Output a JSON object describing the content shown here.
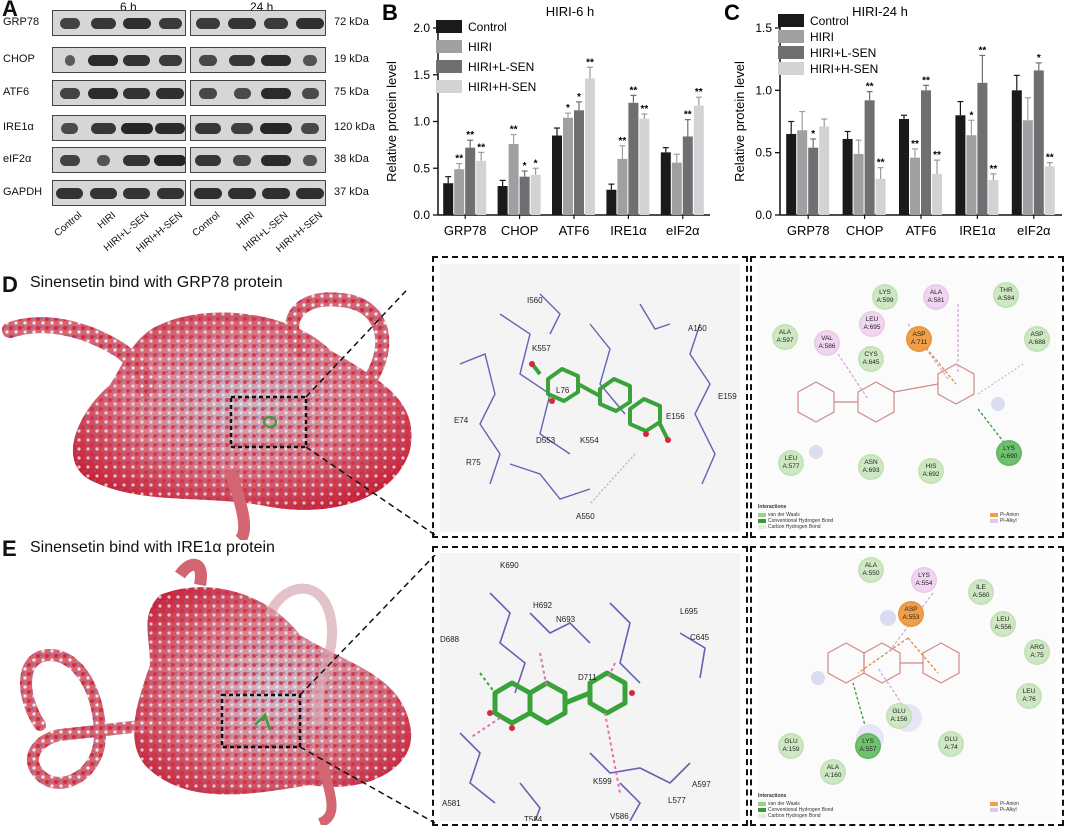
{
  "panelA": {
    "letter": "A",
    "time1": "6 h",
    "time2": "24 h",
    "proteins": [
      {
        "name": "GRP78",
        "kda": "72 kDa"
      },
      {
        "name": "CHOP",
        "kda": "19 kDa"
      },
      {
        "name": "ATF6",
        "kda": "75 kDa"
      },
      {
        "name": "IRE1α",
        "kda": "120 kDa"
      },
      {
        "name": "eIF2α",
        "kda": "38 kDa"
      },
      {
        "name": "GAPDH",
        "kda": "37 kDa"
      }
    ],
    "groups": [
      "Control",
      "HIRI",
      "HIRI+L-SEN",
      "HIRI+H-SEN"
    ]
  },
  "panelD": {
    "letter": "D",
    "title": "Sinensetin bind with GRP78 protein"
  },
  "panelE": {
    "letter": "E",
    "title": "Sinensetin bind with IRE1α protein"
  },
  "dockD": {
    "residues": [
      "I560",
      "A160",
      "K557",
      "L76",
      "E74",
      "E156",
      "E159",
      "D553",
      "K554",
      "R75",
      "A550"
    ],
    "nodes": [
      {
        "res": "LYS\nA:599",
        "kind": "vdw"
      },
      {
        "res": "ALA\nA:581",
        "kind": "alkyl"
      },
      {
        "res": "THR\nA:584",
        "kind": "vdw"
      },
      {
        "res": "LEU\nA:695",
        "kind": "alkyl"
      },
      {
        "res": "ALA\nA:597",
        "kind": "vdw"
      },
      {
        "res": "VAL\nA:586",
        "kind": "alkyl"
      },
      {
        "res": "ASP\nA:711",
        "kind": "anion"
      },
      {
        "res": "CYS\nA:645",
        "kind": "vdw"
      },
      {
        "res": "ASP\nA:688",
        "kind": "vdw"
      },
      {
        "res": "LEU\nA:577",
        "kind": "vdw"
      },
      {
        "res": "ASN\nA:693",
        "kind": "vdw"
      },
      {
        "res": "HIS\nA:692",
        "kind": "vdw"
      },
      {
        "res": "LYS\nA:690",
        "kind": "hbond"
      }
    ],
    "legend": {
      "title": "Interactions",
      "items": [
        "van der Waals",
        "Conventional Hydrogen Bond",
        "Carbon Hydrogen Bond",
        "Pi-Anion",
        "Pi-Alkyl"
      ]
    }
  },
  "dockE": {
    "residues": [
      "K690",
      "H692",
      "D688",
      "N693",
      "L695",
      "D711",
      "C645",
      "K599",
      "A597",
      "L577",
      "A581",
      "V586",
      "T584"
    ],
    "nodes": [
      {
        "res": "ALA\nA:550",
        "kind": "vdw"
      },
      {
        "res": "LYS\nA:554",
        "kind": "alkyl"
      },
      {
        "res": "ILE\nA:560",
        "kind": "vdw"
      },
      {
        "res": "ASP\nA:553",
        "kind": "anion"
      },
      {
        "res": "LEU\nA:556",
        "kind": "vdw"
      },
      {
        "res": "ARG\nA:75",
        "kind": "vdw"
      },
      {
        "res": "GLU\nA:156",
        "kind": "vdw"
      },
      {
        "res": "LEU\nA:76",
        "kind": "vdw"
      },
      {
        "res": "GLU\nA:159",
        "kind": "vdw"
      },
      {
        "res": "LYS\nA:557",
        "kind": "hbond"
      },
      {
        "res": "GLU\nA:74",
        "kind": "vdw"
      },
      {
        "res": "ALA\nA:160",
        "kind": "vdw"
      }
    ],
    "legend": {
      "title": "Interactions",
      "items": [
        "van der Waals",
        "Conventional Hydrogen Bond",
        "Carbon Hydrogen Bond",
        "Pi-Anion",
        "Pi-Alkyl"
      ]
    }
  },
  "colors": {
    "control": "#1a1a1a",
    "hiri": "#a0a0a3",
    "lsen": "#6f6f72",
    "hsen": "#d3d3d5",
    "oxygen": "#d4283c",
    "carbon": "#4cb34c",
    "nitrogen": "#4a4aa8"
  },
  "chart_data": [
    {
      "letter": "B",
      "type": "bar",
      "title": "HIRI-6 h",
      "ylabel": "Relative protein level",
      "ylim": [
        0,
        2.0
      ],
      "yticks": [
        "0.0",
        "0.5",
        "1.0",
        "1.5",
        "2.0"
      ],
      "categories": [
        "GRP78",
        "CHOP",
        "ATF6",
        "IRE1α",
        "eIF2α"
      ],
      "series": [
        {
          "name": "Control",
          "values": [
            0.34,
            0.31,
            0.85,
            0.27,
            0.67
          ],
          "errors": [
            0.07,
            0.06,
            0.08,
            0.06,
            0.05
          ],
          "sig": [
            "",
            "",
            "",
            "",
            ""
          ]
        },
        {
          "name": "HIRI",
          "values": [
            0.49,
            0.76,
            1.04,
            0.6,
            0.56
          ],
          "errors": [
            0.06,
            0.1,
            0.05,
            0.14,
            0.09
          ],
          "sig": [
            "**",
            "**",
            "*",
            "**",
            ""
          ]
        },
        {
          "name": "HIRI+L-SEN",
          "values": [
            0.72,
            0.41,
            1.12,
            1.2,
            0.84
          ],
          "errors": [
            0.08,
            0.06,
            0.09,
            0.08,
            0.18
          ],
          "sig": [
            "**",
            "*",
            "*",
            "**",
            "**"
          ]
        },
        {
          "name": "HIRI+H-SEN",
          "values": [
            0.58,
            0.43,
            1.46,
            1.03,
            1.17
          ],
          "errors": [
            0.09,
            0.07,
            0.12,
            0.05,
            0.09
          ],
          "sig": [
            "**",
            "*",
            "**",
            "**",
            "**"
          ]
        }
      ],
      "legend": "top-left"
    },
    {
      "letter": "C",
      "type": "bar",
      "title": "HIRI-24 h",
      "ylabel": "Relative protein level",
      "ylim": [
        0,
        1.5
      ],
      "yticks": [
        "0.0",
        "0.5",
        "1.0",
        "1.5"
      ],
      "categories": [
        "GRP78",
        "CHOP",
        "ATF6",
        "IRE1α",
        "eIF2α"
      ],
      "series": [
        {
          "name": "Control",
          "values": [
            0.65,
            0.61,
            0.77,
            0.8,
            1.0
          ],
          "errors": [
            0.1,
            0.06,
            0.03,
            0.11,
            0.12
          ],
          "sig": [
            "",
            "",
            "",
            "",
            ""
          ]
        },
        {
          "name": "HIRI",
          "values": [
            0.68,
            0.49,
            0.46,
            0.64,
            0.76
          ],
          "errors": [
            0.15,
            0.11,
            0.07,
            0.12,
            0.18
          ],
          "sig": [
            "",
            "",
            "**",
            "*",
            ""
          ]
        },
        {
          "name": "HIRI+L-SEN",
          "values": [
            0.54,
            0.92,
            1.0,
            1.06,
            1.16
          ],
          "errors": [
            0.07,
            0.07,
            0.04,
            0.22,
            0.06
          ],
          "sig": [
            "*",
            "**",
            "**",
            "**",
            "*"
          ]
        },
        {
          "name": "HIRI+H-SEN",
          "values": [
            0.71,
            0.29,
            0.33,
            0.28,
            0.39
          ],
          "errors": [
            0.06,
            0.09,
            0.11,
            0.05,
            0.03
          ],
          "sig": [
            "",
            "**",
            "**",
            "**",
            "**"
          ]
        }
      ],
      "legend": "top-left"
    }
  ]
}
